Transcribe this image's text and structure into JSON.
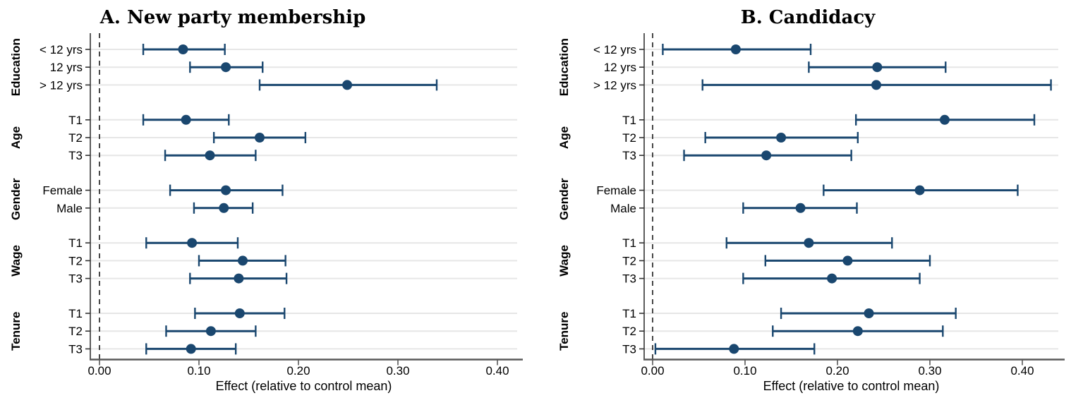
{
  "figure": {
    "background": "#ffffff"
  },
  "colors": {
    "marker": "#1a476f",
    "ci": "#1a476f",
    "grid": "#e6e6e6",
    "axis": "#595959",
    "y_axis": "#333333",
    "zero_line": "#1a1a1a",
    "text": "#000000"
  },
  "chart_data": [
    {
      "type": "scatter",
      "title": "A. New party membership",
      "xlabel": "Effect (relative to control mean)",
      "x_ticks": [
        0.0,
        0.1,
        0.2,
        0.3,
        0.4
      ],
      "x_tick_labels": [
        "0.00",
        "0.10",
        "0.20",
        "0.30",
        "0.40"
      ],
      "xlim": [
        -0.009,
        0.42
      ],
      "zero_line": 0,
      "grid": true,
      "legend": "none",
      "groups": [
        {
          "label": "Education",
          "rows": [
            {
              "label": "< 12 yrs",
              "value": 0.084,
              "ci_low": 0.044,
              "ci_high": 0.126
            },
            {
              "label": "12 yrs",
              "value": 0.127,
              "ci_low": 0.091,
              "ci_high": 0.164
            },
            {
              "label": "> 12 yrs",
              "value": 0.249,
              "ci_low": 0.161,
              "ci_high": 0.339
            }
          ]
        },
        {
          "label": "Age",
          "rows": [
            {
              "label": "T1",
              "value": 0.087,
              "ci_low": 0.044,
              "ci_high": 0.13
            },
            {
              "label": "T2",
              "value": 0.161,
              "ci_low": 0.115,
              "ci_high": 0.207
            },
            {
              "label": "T3",
              "value": 0.111,
              "ci_low": 0.066,
              "ci_high": 0.157
            }
          ]
        },
        {
          "label": "Gender",
          "rows": [
            {
              "label": "Female",
              "value": 0.127,
              "ci_low": 0.071,
              "ci_high": 0.184
            },
            {
              "label": "Male",
              "value": 0.125,
              "ci_low": 0.095,
              "ci_high": 0.154
            }
          ]
        },
        {
          "label": "Wage",
          "rows": [
            {
              "label": "T1",
              "value": 0.093,
              "ci_low": 0.047,
              "ci_high": 0.139
            },
            {
              "label": "T2",
              "value": 0.144,
              "ci_low": 0.1,
              "ci_high": 0.187
            },
            {
              "label": "T3",
              "value": 0.14,
              "ci_low": 0.091,
              "ci_high": 0.188
            }
          ]
        },
        {
          "label": "Tenure",
          "rows": [
            {
              "label": "T1",
              "value": 0.141,
              "ci_low": 0.096,
              "ci_high": 0.186
            },
            {
              "label": "T2",
              "value": 0.112,
              "ci_low": 0.067,
              "ci_high": 0.157
            },
            {
              "label": "T3",
              "value": 0.092,
              "ci_low": 0.047,
              "ci_high": 0.137
            }
          ]
        }
      ]
    },
    {
      "type": "scatter",
      "title": "B. Candidacy",
      "xlabel": "Effect (relative to control mean)",
      "x_ticks": [
        0.0,
        0.1,
        0.2,
        0.3,
        0.4
      ],
      "x_tick_labels": [
        "0.00",
        "0.10",
        "0.20",
        "0.30",
        "0.40"
      ],
      "xlim": [
        -0.012,
        0.44
      ],
      "zero_line": 0,
      "grid": true,
      "legend": "none",
      "groups": [
        {
          "label": "Education",
          "rows": [
            {
              "label": "< 12 yrs",
              "value": 0.09,
              "ci_low": 0.011,
              "ci_high": 0.171
            },
            {
              "label": "12 yrs",
              "value": 0.243,
              "ci_low": 0.169,
              "ci_high": 0.317
            },
            {
              "label": "> 12 yrs",
              "value": 0.242,
              "ci_low": 0.054,
              "ci_high": 0.431
            }
          ]
        },
        {
          "label": "Age",
          "rows": [
            {
              "label": "T1",
              "value": 0.316,
              "ci_low": 0.22,
              "ci_high": 0.413
            },
            {
              "label": "T2",
              "value": 0.139,
              "ci_low": 0.057,
              "ci_high": 0.222
            },
            {
              "label": "T3",
              "value": 0.123,
              "ci_low": 0.034,
              "ci_high": 0.215
            }
          ]
        },
        {
          "label": "Gender",
          "rows": [
            {
              "label": "Female",
              "value": 0.289,
              "ci_low": 0.185,
              "ci_high": 0.395
            },
            {
              "label": "Male",
              "value": 0.16,
              "ci_low": 0.098,
              "ci_high": 0.221
            }
          ]
        },
        {
          "label": "Wage",
          "rows": [
            {
              "label": "T1",
              "value": 0.169,
              "ci_low": 0.08,
              "ci_high": 0.259
            },
            {
              "label": "T2",
              "value": 0.211,
              "ci_low": 0.122,
              "ci_high": 0.3
            },
            {
              "label": "T3",
              "value": 0.194,
              "ci_low": 0.098,
              "ci_high": 0.289
            }
          ]
        },
        {
          "label": "Tenure",
          "rows": [
            {
              "label": "T1",
              "value": 0.234,
              "ci_low": 0.139,
              "ci_high": 0.328
            },
            {
              "label": "T2",
              "value": 0.222,
              "ci_low": 0.13,
              "ci_high": 0.314
            },
            {
              "label": "T3",
              "value": 0.088,
              "ci_low": 0.003,
              "ci_high": 0.175
            }
          ]
        }
      ]
    }
  ]
}
